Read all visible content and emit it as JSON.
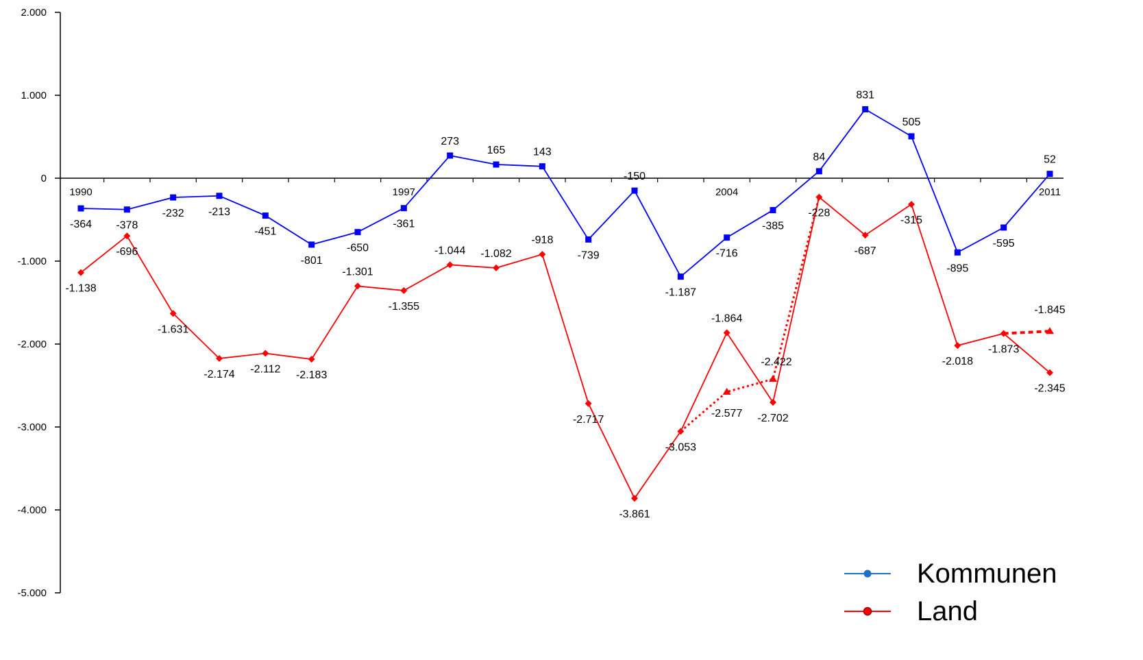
{
  "chart_data": {
    "type": "line",
    "x": [
      1990,
      1991,
      1992,
      1993,
      1994,
      1995,
      1996,
      1997,
      1998,
      1999,
      2000,
      2001,
      2002,
      2003,
      2004,
      2005,
      2006,
      2007,
      2008,
      2009,
      2010,
      2011
    ],
    "year_labels": [
      {
        "year": 1990,
        "label": "1990"
      },
      {
        "year": 1997,
        "label": "1997"
      },
      {
        "year": 2004,
        "label": "2004"
      },
      {
        "year": 2011,
        "label": "2011"
      }
    ],
    "ylim": [
      -5000,
      2000
    ],
    "yticks": [
      2000,
      1000,
      0,
      -1000,
      -2000,
      -3000,
      -4000,
      -5000
    ],
    "ytick_labels": [
      "2.000",
      "1.000",
      "0",
      "-1.000",
      "-2.000",
      "-3.000",
      "-4.000",
      "-5.000"
    ],
    "series": [
      {
        "name": "Kommunen",
        "color": "#0000ff",
        "marker": "square",
        "values": [
          -364,
          -378,
          -232,
          -213,
          -451,
          -801,
          -650,
          -361,
          273,
          165,
          143,
          -739,
          -150,
          -1187,
          -716,
          -385,
          84,
          831,
          505,
          -895,
          -595,
          52
        ],
        "labels": [
          "-364",
          "-378",
          "-232",
          "-213",
          "-451",
          "-801",
          "-650",
          "-361",
          "273",
          "165",
          "143",
          "-739",
          "-150",
          "-1.187",
          "-716",
          "-385",
          "84",
          "831",
          "505",
          "-895",
          "-595",
          "52"
        ],
        "label_pos": [
          "below",
          "below",
          "below",
          "below",
          "below",
          "below",
          "below",
          "below",
          "above",
          "above",
          "above",
          "below",
          "above",
          "below",
          "below",
          "below",
          "above",
          "above",
          "above",
          "below",
          "below",
          "above"
        ]
      },
      {
        "name": "Land",
        "color": "#ff0000",
        "marker": "diamond",
        "values": [
          -1138,
          -696,
          -1631,
          -2174,
          -2112,
          -2183,
          -1301,
          -1355,
          -1044,
          -1082,
          -918,
          -2717,
          -3861,
          -3053,
          -1864,
          -2702,
          -228,
          -687,
          -315,
          -2018,
          -1873,
          -2345
        ],
        "labels": [
          "-1.138",
          "-696",
          "-1.631",
          "-2.174",
          "-2.112",
          "-2.183",
          "-1.301",
          "-1.355",
          "-1.044",
          "-1.082",
          "-918",
          "-2.717",
          "-3.861",
          "-3.053",
          "-1.864",
          "-2.702",
          "-228",
          "-687",
          "-315",
          "-2.018",
          "-1.873",
          "-2.345"
        ],
        "label_pos": [
          "below",
          "below",
          "below",
          "below",
          "below",
          "below",
          "above",
          "below",
          "above",
          "above",
          "above",
          "below",
          "below",
          "below",
          "above",
          "below",
          "below",
          "below",
          "below",
          "below",
          "below",
          "below"
        ]
      },
      {
        "name": "",
        "color": "#ff0000",
        "style": "dotted",
        "marker": "triangle",
        "segments": [
          {
            "x": [
              2003,
              2004,
              2005,
              2006
            ],
            "values": [
              -3053,
              -2577,
              -2422,
              -228
            ]
          },
          {
            "x": [
              2010,
              2011
            ],
            "values": [
              -1873,
              -1845
            ]
          }
        ],
        "points": [
          {
            "x": 2004,
            "value": -2577,
            "label": "-2.577"
          },
          {
            "x": 2005,
            "value": -2422,
            "label": "-2.422"
          },
          {
            "x": 2011,
            "value": -1845,
            "label": "-1.845"
          }
        ]
      }
    ],
    "legend": {
      "position": "bottom-right",
      "items": [
        {
          "label": "Kommunen",
          "color": "#1f6fc4"
        },
        {
          "label": "Land",
          "color": "#ff0000"
        }
      ]
    },
    "title": "",
    "xlabel": "",
    "ylabel": ""
  }
}
